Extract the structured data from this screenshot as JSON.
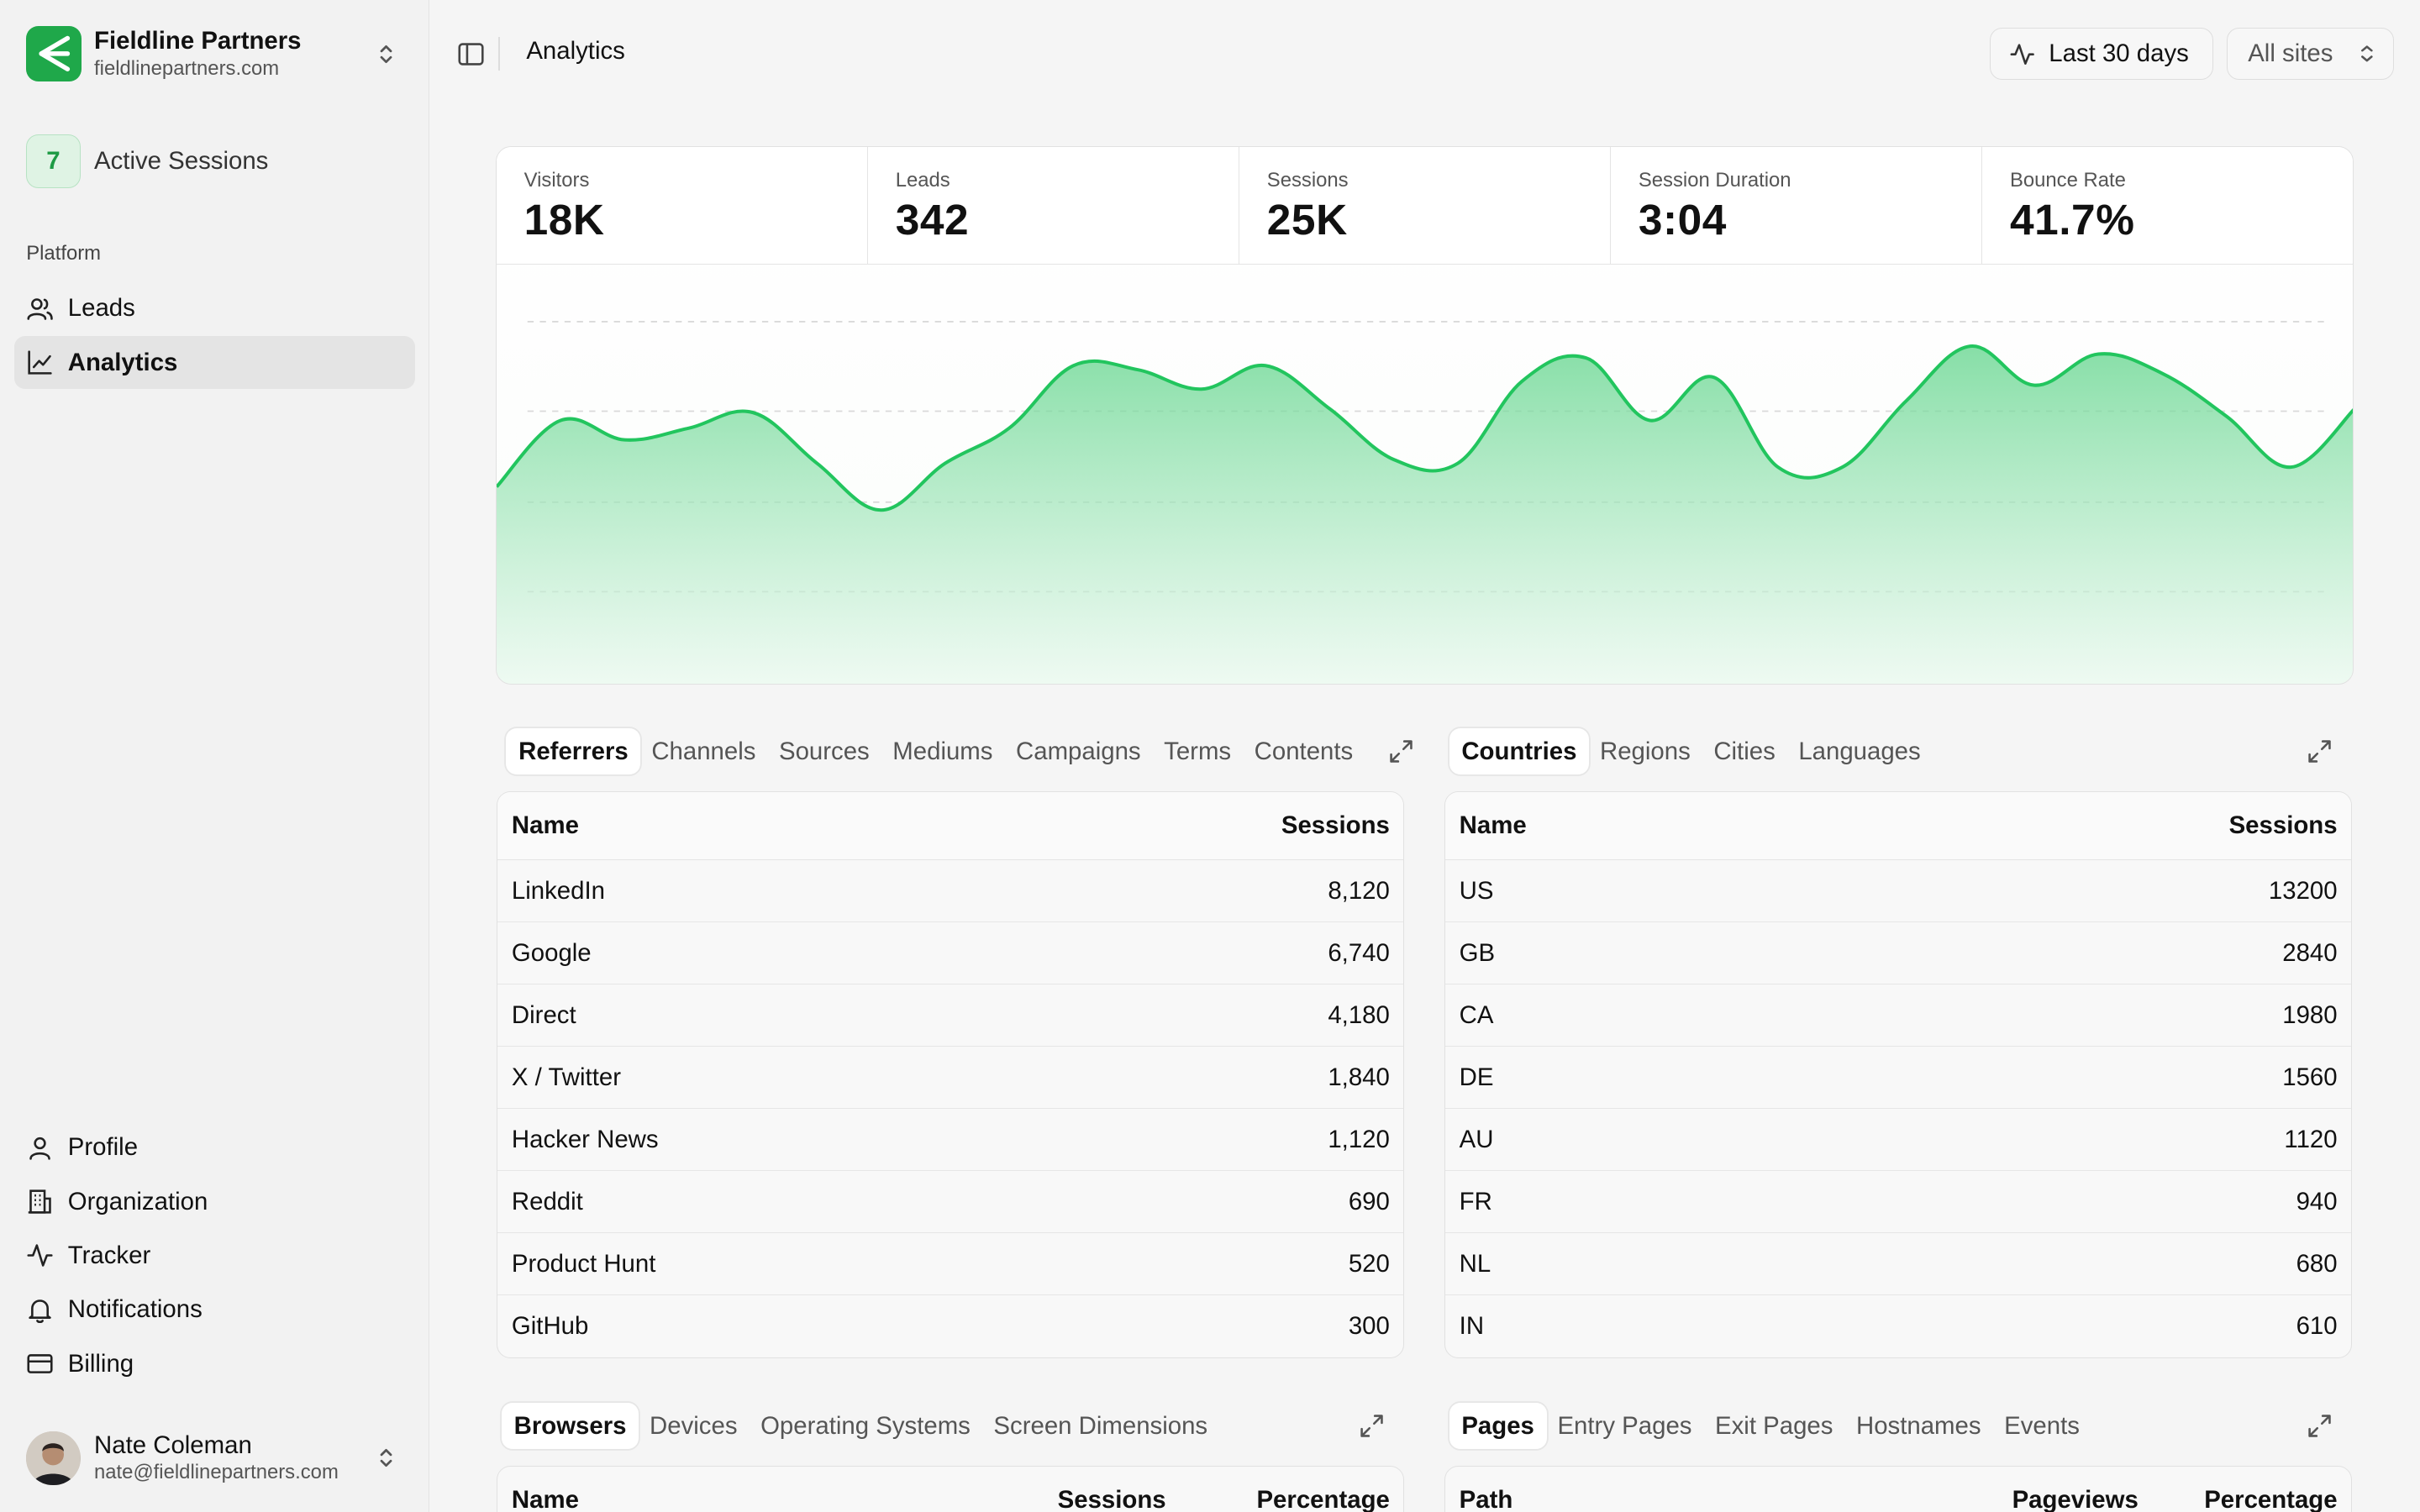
{
  "org": {
    "name": "Fieldline Partners",
    "domain": "fieldlinepartners.com"
  },
  "active_sessions": {
    "count": "7",
    "label": "Active Sessions"
  },
  "sidebar": {
    "section_label": "Platform",
    "platform_items": [
      {
        "label": "Leads",
        "icon": "users-icon"
      },
      {
        "label": "Analytics",
        "icon": "chart-line-icon",
        "active": true
      }
    ],
    "bottom_items": [
      {
        "label": "Profile",
        "icon": "user-icon"
      },
      {
        "label": "Organization",
        "icon": "building-icon"
      },
      {
        "label": "Tracker",
        "icon": "activity-icon"
      },
      {
        "label": "Notifications",
        "icon": "bell-icon"
      },
      {
        "label": "Billing",
        "icon": "credit-card-icon"
      }
    ]
  },
  "user": {
    "name": "Nate Coleman",
    "email": "nate@fieldlinepartners.com"
  },
  "header": {
    "title": "Analytics",
    "range_label": "Last 30 days",
    "sites_label": "All sites"
  },
  "metrics": [
    {
      "label": "Visitors",
      "value": "18K"
    },
    {
      "label": "Leads",
      "value": "342"
    },
    {
      "label": "Sessions",
      "value": "25K"
    },
    {
      "label": "Session Duration",
      "value": "3:04"
    },
    {
      "label": "Bounce Rate",
      "value": "41.7%"
    }
  ],
  "chart_data": {
    "type": "area",
    "x": [
      1,
      2,
      3,
      4,
      5,
      6,
      7,
      8,
      9,
      10,
      11,
      12,
      13,
      14,
      15,
      16,
      17,
      18,
      19,
      20,
      21,
      22,
      23,
      24,
      25,
      26,
      27,
      28,
      29,
      30
    ],
    "values": [
      51,
      68,
      63,
      66,
      70,
      57,
      45,
      57,
      66,
      82,
      81,
      76,
      82,
      71,
      58,
      57,
      78,
      84,
      68,
      79,
      56,
      56,
      73,
      87,
      77,
      85,
      80,
      69,
      56,
      71
    ],
    "ylim": [
      0,
      100
    ],
    "grid": true,
    "color": "#22c55e"
  },
  "referrers_panel": {
    "tabs": [
      "Referrers",
      "Channels",
      "Sources",
      "Mediums",
      "Campaigns",
      "Terms",
      "Contents"
    ],
    "active_tab": "Referrers",
    "columns": [
      "Name",
      "Sessions"
    ],
    "rows": [
      {
        "name": "LinkedIn",
        "sessions": "8,120"
      },
      {
        "name": "Google",
        "sessions": "6,740"
      },
      {
        "name": "Direct",
        "sessions": "4,180"
      },
      {
        "name": "X / Twitter",
        "sessions": "1,840"
      },
      {
        "name": "Hacker News",
        "sessions": "1,120"
      },
      {
        "name": "Reddit",
        "sessions": "690"
      },
      {
        "name": "Product Hunt",
        "sessions": "520"
      },
      {
        "name": "GitHub",
        "sessions": "300"
      }
    ]
  },
  "countries_panel": {
    "tabs": [
      "Countries",
      "Regions",
      "Cities",
      "Languages"
    ],
    "active_tab": "Countries",
    "columns": [
      "Name",
      "Sessions"
    ],
    "rows": [
      {
        "name": "US",
        "sessions": "13200"
      },
      {
        "name": "GB",
        "sessions": "2840"
      },
      {
        "name": "CA",
        "sessions": "1980"
      },
      {
        "name": "DE",
        "sessions": "1560"
      },
      {
        "name": "AU",
        "sessions": "1120"
      },
      {
        "name": "FR",
        "sessions": "940"
      },
      {
        "name": "NL",
        "sessions": "680"
      },
      {
        "name": "IN",
        "sessions": "610"
      }
    ]
  },
  "browsers_panel": {
    "tabs": [
      "Browsers",
      "Devices",
      "Operating Systems",
      "Screen Dimensions"
    ],
    "active_tab": "Browsers",
    "columns": [
      "Name",
      "Sessions",
      "Percentage"
    ]
  },
  "pages_panel": {
    "tabs": [
      "Pages",
      "Entry Pages",
      "Exit Pages",
      "Hostnames",
      "Events"
    ],
    "active_tab": "Pages",
    "columns": [
      "Path",
      "Pageviews",
      "Percentage"
    ]
  }
}
